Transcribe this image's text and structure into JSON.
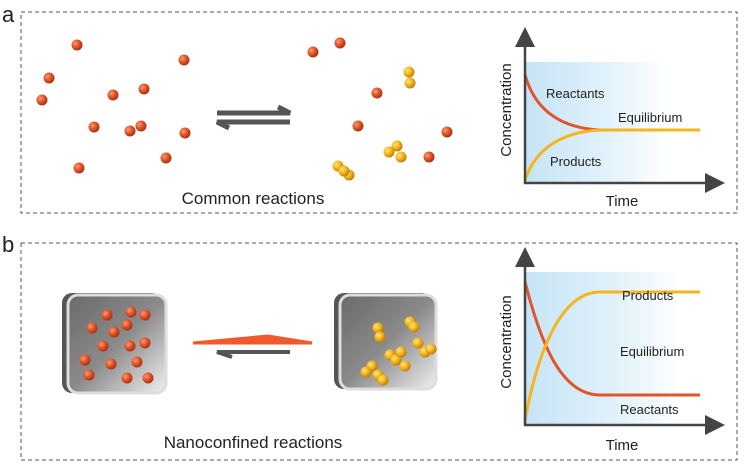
{
  "panel_a": {
    "label": "a",
    "caption": "Common reactions",
    "chart": {
      "ylabel": "Concentration",
      "xlabel": "Time",
      "curve_labels": {
        "reactants": "Reactants",
        "products": "Products",
        "equilibrium": "Equilibrium"
      }
    }
  },
  "panel_b": {
    "label": "b",
    "caption": "Nanoconfined reactions",
    "chart": {
      "ylabel": "Concentration",
      "xlabel": "Time",
      "curve_labels": {
        "reactants": "Reactants",
        "products": "Products",
        "equilibrium": "Equilibrium"
      }
    }
  },
  "colors": {
    "reactant": "#e0552a",
    "product": "#f5b51c",
    "arrow_grey": "#555555",
    "arrow_orange": "#ee5a2c",
    "shade": "#cfe8f7"
  }
}
